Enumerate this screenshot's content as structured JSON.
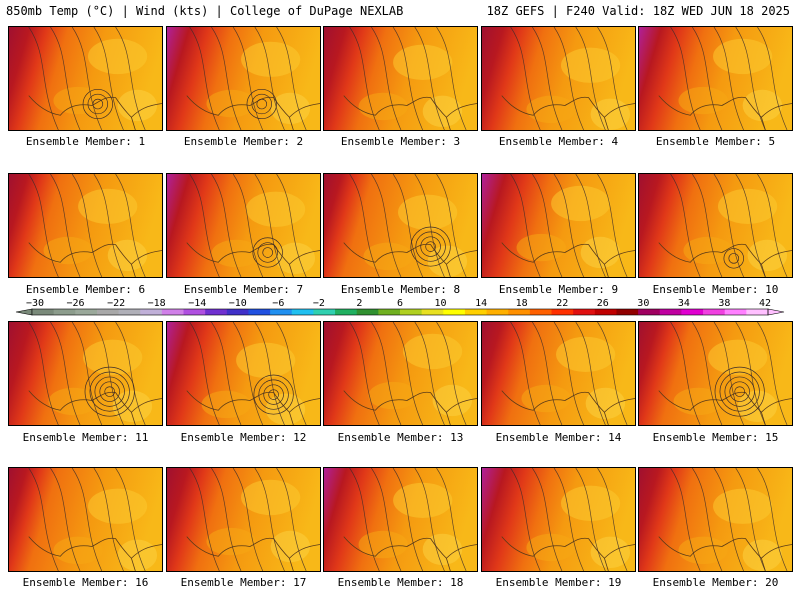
{
  "header": {
    "left": "850mb Temp (°C) | Wind (kts) | College of DuPage NEXLAB",
    "right": "18Z GEFS | F240 Valid: 18Z WED JUN 18 2025"
  },
  "panels": [
    {
      "label": "Ensemble Member: 1",
      "heat": 0.75,
      "low": 0.55
    },
    {
      "label": "Ensemble Member: 2",
      "heat": 0.85,
      "low": 0.55
    },
    {
      "label": "Ensemble Member: 3",
      "heat": 0.8,
      "low": 0.0
    },
    {
      "label": "Ensemble Member: 4",
      "heat": 0.8,
      "low": 0.0
    },
    {
      "label": "Ensemble Member: 5",
      "heat": 0.85,
      "low": 0.0
    },
    {
      "label": "Ensemble Member: 6",
      "heat": 0.65,
      "low": 0.0
    },
    {
      "label": "Ensemble Member: 7",
      "heat": 0.85,
      "low": 0.5
    },
    {
      "label": "Ensemble Member: 8",
      "heat": 0.6,
      "low": 0.7
    },
    {
      "label": "Ensemble Member: 9",
      "heat": 0.9,
      "low": 0.0
    },
    {
      "label": "Ensemble Member: 10",
      "heat": 0.75,
      "low": 0.3
    },
    {
      "label": "Ensemble Member: 11",
      "heat": 0.8,
      "low": 0.8
    },
    {
      "label": "Ensemble Member: 12",
      "heat": 0.85,
      "low": 0.7
    },
    {
      "label": "Ensemble Member: 13",
      "heat": 0.75,
      "low": 0.0
    },
    {
      "label": "Ensemble Member: 14",
      "heat": 0.7,
      "low": 0.0
    },
    {
      "label": "Ensemble Member: 15",
      "heat": 0.65,
      "low": 0.8
    },
    {
      "label": "Ensemble Member: 16",
      "heat": 0.6,
      "low": 0.0
    },
    {
      "label": "Ensemble Member: 17",
      "heat": 0.75,
      "low": 0.0
    },
    {
      "label": "Ensemble Member: 18",
      "heat": 0.85,
      "low": 0.0
    },
    {
      "label": "Ensemble Member: 19",
      "heat": 0.9,
      "low": 0.0
    },
    {
      "label": "Ensemble Member: 20",
      "heat": 0.7,
      "low": 0.0
    }
  ],
  "colorbar": {
    "ticks": [
      "−30",
      "−26",
      "−22",
      "−18",
      "−14",
      "−10",
      "−6",
      "−2",
      "2",
      "6",
      "10",
      "14",
      "18",
      "22",
      "26",
      "30",
      "34",
      "38",
      "42"
    ],
    "colors": [
      "#7a8a7a",
      "#8c9c8c",
      "#9aa89a",
      "#a8a8a8",
      "#b0b0b8",
      "#c0b0d8",
      "#d080e8",
      "#b050e0",
      "#7030d0",
      "#4030c8",
      "#2050e0",
      "#2090f0",
      "#20c0f0",
      "#30d0b0",
      "#20b060",
      "#309030",
      "#70b020",
      "#b0d020",
      "#e8e020",
      "#ffff00",
      "#ffd000",
      "#ffb000",
      "#ff9000",
      "#ff6000",
      "#ff3000",
      "#e01010",
      "#c00000",
      "#900000",
      "#a00060",
      "#c000a0",
      "#e000d0",
      "#f040e0",
      "#ff80ff",
      "#ffc0ff"
    ]
  }
}
